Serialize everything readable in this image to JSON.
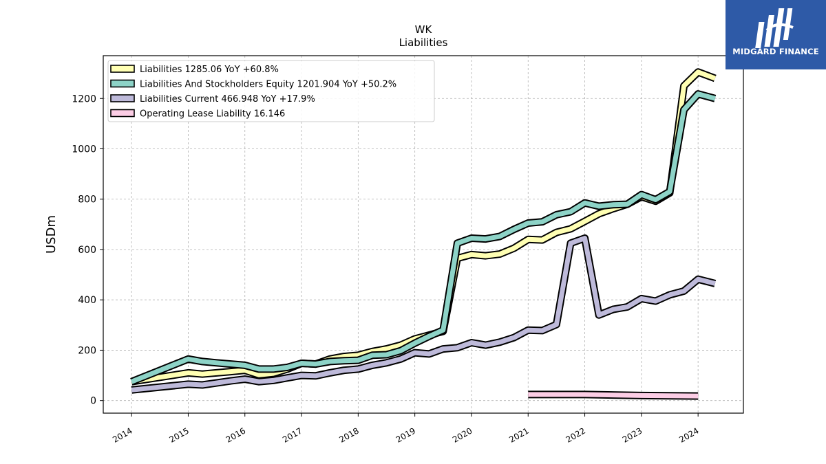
{
  "brand": {
    "name": "MIDGARD FINANCE"
  },
  "chart_data": {
    "type": "line",
    "title": "WK",
    "subtitle": "Liabilities",
    "ylabel": "USDm",
    "xlabel": "",
    "xlim": [
      2013.5,
      2024.8
    ],
    "ylim": [
      -50,
      1370
    ],
    "yticks": [
      0,
      200,
      400,
      600,
      800,
      1000,
      1200
    ],
    "xticks": [
      2014,
      2015,
      2016,
      2017,
      2018,
      2019,
      2020,
      2021,
      2022,
      2023,
      2024
    ],
    "grid": true,
    "legend": "top-left",
    "series": [
      {
        "name": "Liabilities",
        "legend_label": "Liabilities  1285.06 YoY +60.8%",
        "color": "#ffffb3",
        "x": [
          2014.0,
          2015.0,
          2015.25,
          2015.5,
          2015.75,
          2016.0,
          2016.25,
          2016.5,
          2016.75,
          2017.0,
          2017.25,
          2017.5,
          2017.75,
          2018.0,
          2018.25,
          2018.5,
          2018.75,
          2019.0,
          2019.25,
          2019.5,
          2019.75,
          2020.0,
          2020.25,
          2020.5,
          2020.75,
          2021.0,
          2021.25,
          2021.5,
          2021.75,
          2022.0,
          2022.25,
          2022.5,
          2022.75,
          2023.0,
          2023.25,
          2023.5,
          2023.75,
          2024.0,
          2024.3
        ],
        "y": [
          75,
          110,
          105,
          110,
          115,
          120,
          102,
          108,
          125,
          148,
          145,
          165,
          175,
          180,
          195,
          205,
          220,
          245,
          260,
          275,
          565,
          580,
          575,
          582,
          605,
          640,
          638,
          668,
          682,
          712,
          742,
          762,
          780,
          810,
          792,
          825,
          1250,
          1305,
          1280
        ]
      },
      {
        "name": "Liabilities And Stockholders Equity",
        "legend_label": "Liabilities And Stockholders Equity  1201.904 YoY +50.2%",
        "color": "#8dd3c7",
        "x": [
          2014.0,
          2015.0,
          2015.25,
          2015.5,
          2015.75,
          2016.0,
          2016.25,
          2016.5,
          2016.75,
          2017.0,
          2017.25,
          2017.5,
          2017.75,
          2018.0,
          2018.25,
          2018.5,
          2018.75,
          2019.0,
          2019.25,
          2019.5,
          2019.75,
          2020.0,
          2020.25,
          2020.5,
          2020.75,
          2021.0,
          2021.25,
          2021.5,
          2021.75,
          2022.0,
          2022.25,
          2022.5,
          2022.75,
          2023.0,
          2023.25,
          2023.5,
          2023.75,
          2024.0,
          2024.3
        ],
        "y": [
          75,
          165,
          155,
          150,
          145,
          140,
          125,
          125,
          132,
          148,
          145,
          155,
          158,
          160,
          180,
          182,
          198,
          228,
          255,
          280,
          625,
          645,
          642,
          652,
          680,
          705,
          710,
          738,
          750,
          785,
          772,
          778,
          780,
          818,
          798,
          830,
          1155,
          1218,
          1200
        ]
      },
      {
        "name": "Liabilities Current",
        "legend_label": "Liabilities Current  466.948 YoY +17.9%",
        "color": "#bebada",
        "x": [
          2014.0,
          2015.0,
          2015.25,
          2015.5,
          2015.75,
          2016.0,
          2016.25,
          2016.5,
          2016.75,
          2017.0,
          2017.25,
          2017.5,
          2017.75,
          2018.0,
          2018.25,
          2018.5,
          2018.75,
          2019.0,
          2019.25,
          2019.5,
          2019.75,
          2020.0,
          2020.25,
          2020.5,
          2020.75,
          2021.0,
          2021.25,
          2021.5,
          2021.75,
          2022.0,
          2022.25,
          2022.5,
          2022.75,
          2023.0,
          2023.25,
          2023.5,
          2023.75,
          2024.0,
          2024.3
        ],
        "y": [
          42,
          65,
          62,
          70,
          78,
          85,
          75,
          80,
          90,
          100,
          98,
          110,
          120,
          125,
          140,
          150,
          165,
          190,
          185,
          205,
          210,
          230,
          220,
          232,
          250,
          280,
          278,
          302,
          625,
          645,
          340,
          362,
          372,
          405,
          395,
          420,
          435,
          482,
          465
        ]
      },
      {
        "name": "Operating Lease Liability",
        "legend_label": "Operating Lease Liability  16.146",
        "color": "#fccde5",
        "x": [
          2021.0,
          2022.0,
          2023.0,
          2024.0
        ],
        "y": [
          24,
          24,
          20,
          18
        ]
      }
    ]
  }
}
